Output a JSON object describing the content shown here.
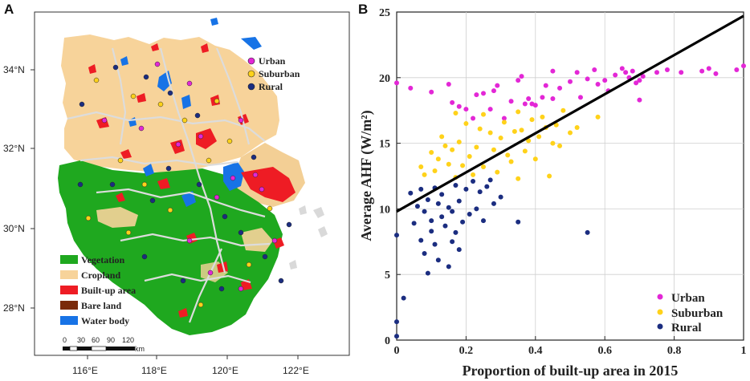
{
  "panels": {
    "a_label": "A",
    "b_label": "B"
  },
  "colors": {
    "vegetation": "#1fa81f",
    "cropland": "#f7d39a",
    "builtup": "#ee1c24",
    "bareland": "#7a2a0a",
    "water": "#1773e6",
    "urban": "#e327d6",
    "suburban": "#ffd21a",
    "rural": "#1b2d80",
    "boundary": "#dcdcdc"
  },
  "map": {
    "lat_labels": [
      "34°N",
      "32°N",
      "30°N",
      "28°N"
    ],
    "lon_labels": [
      "116°E",
      "118°E",
      "120°E",
      "122°E"
    ],
    "site_legend": [
      {
        "label": "Urban",
        "color_key": "urban"
      },
      {
        "label": "Suburban",
        "color_key": "suburban"
      },
      {
        "label": "Rural",
        "color_key": "rural"
      }
    ],
    "landcover_legend": [
      {
        "label": "Vegetation",
        "color_key": "vegetation"
      },
      {
        "label": "Cropland",
        "color_key": "cropland"
      },
      {
        "label": "Built-up area",
        "color_key": "builtup"
      },
      {
        "label": "Bare land",
        "color_key": "bareland"
      },
      {
        "label": "Water body",
        "color_key": "water"
      }
    ],
    "scale_bar": {
      "ticks": [
        "0",
        "30",
        "60",
        "90",
        "120"
      ],
      "unit": "km"
    }
  },
  "chart_data": {
    "type": "scatter",
    "title": "",
    "xlabel": "Proportion of built-up area in 2015",
    "ylabel": "Average AHF (W/m²)",
    "xlim": [
      0,
      1
    ],
    "ylim": [
      0,
      25
    ],
    "xticks": [
      0,
      0.2,
      0.4,
      0.6,
      0.8,
      1
    ],
    "xtick_labels": [
      "0",
      "0.2",
      "0.4",
      "0.6",
      "0.8",
      "1"
    ],
    "yticks": [
      0,
      5,
      10,
      15,
      20,
      25
    ],
    "ytick_labels": [
      "0",
      "5",
      "10",
      "15",
      "20",
      "25"
    ],
    "grid": true,
    "legend_position": "bottom-right",
    "regression_line": {
      "x": [
        0,
        1
      ],
      "y": [
        9.8,
        24.7
      ]
    },
    "series": [
      {
        "name": "Urban",
        "color_key": "urban",
        "points": [
          [
            0.0,
            19.6
          ],
          [
            0.04,
            19.2
          ],
          [
            0.1,
            18.9
          ],
          [
            0.15,
            19.5
          ],
          [
            0.16,
            18.1
          ],
          [
            0.18,
            17.8
          ],
          [
            0.2,
            17.6
          ],
          [
            0.22,
            16.9
          ],
          [
            0.23,
            18.7
          ],
          [
            0.25,
            18.8
          ],
          [
            0.27,
            17.6
          ],
          [
            0.28,
            19.0
          ],
          [
            0.29,
            19.4
          ],
          [
            0.31,
            16.9
          ],
          [
            0.33,
            18.2
          ],
          [
            0.35,
            19.8
          ],
          [
            0.36,
            20.1
          ],
          [
            0.37,
            18.0
          ],
          [
            0.38,
            18.4
          ],
          [
            0.39,
            18.0
          ],
          [
            0.4,
            17.9
          ],
          [
            0.42,
            18.5
          ],
          [
            0.43,
            19.4
          ],
          [
            0.45,
            18.4
          ],
          [
            0.45,
            20.5
          ],
          [
            0.47,
            19.2
          ],
          [
            0.5,
            19.7
          ],
          [
            0.52,
            20.4
          ],
          [
            0.53,
            18.5
          ],
          [
            0.55,
            19.9
          ],
          [
            0.57,
            20.6
          ],
          [
            0.58,
            19.5
          ],
          [
            0.6,
            19.8
          ],
          [
            0.61,
            19.0
          ],
          [
            0.63,
            20.2
          ],
          [
            0.65,
            20.7
          ],
          [
            0.66,
            20.4
          ],
          [
            0.67,
            20.0
          ],
          [
            0.68,
            20.5
          ],
          [
            0.69,
            19.6
          ],
          [
            0.7,
            18.3
          ],
          [
            0.71,
            20.1
          ],
          [
            0.7,
            19.8
          ],
          [
            0.75,
            20.4
          ],
          [
            0.78,
            20.6
          ],
          [
            0.82,
            20.4
          ],
          [
            0.88,
            20.5
          ],
          [
            0.9,
            20.7
          ],
          [
            0.92,
            20.3
          ],
          [
            0.98,
            20.6
          ],
          [
            1.0,
            20.9
          ]
        ]
      },
      {
        "name": "Suburban",
        "color_key": "suburban",
        "points": [
          [
            0.07,
            13.2
          ],
          [
            0.08,
            12.6
          ],
          [
            0.1,
            14.3
          ],
          [
            0.11,
            12.9
          ],
          [
            0.12,
            13.8
          ],
          [
            0.13,
            15.5
          ],
          [
            0.14,
            14.8
          ],
          [
            0.15,
            13.4
          ],
          [
            0.16,
            14.5
          ],
          [
            0.17,
            12.4
          ],
          [
            0.17,
            17.3
          ],
          [
            0.18,
            15.1
          ],
          [
            0.19,
            13.3
          ],
          [
            0.2,
            16.5
          ],
          [
            0.21,
            14.0
          ],
          [
            0.22,
            12.6
          ],
          [
            0.23,
            14.7
          ],
          [
            0.24,
            16.1
          ],
          [
            0.25,
            13.2
          ],
          [
            0.25,
            17.2
          ],
          [
            0.27,
            15.8
          ],
          [
            0.28,
            14.5
          ],
          [
            0.29,
            12.8
          ],
          [
            0.3,
            15.4
          ],
          [
            0.31,
            16.6
          ],
          [
            0.32,
            14.1
          ],
          [
            0.33,
            13.6
          ],
          [
            0.34,
            15.9
          ],
          [
            0.35,
            12.3
          ],
          [
            0.35,
            17.4
          ],
          [
            0.36,
            16.0
          ],
          [
            0.37,
            14.4
          ],
          [
            0.38,
            15.2
          ],
          [
            0.39,
            16.8
          ],
          [
            0.4,
            13.8
          ],
          [
            0.41,
            15.5
          ],
          [
            0.42,
            17.0
          ],
          [
            0.43,
            16.2
          ],
          [
            0.44,
            12.5
          ],
          [
            0.45,
            15.0
          ],
          [
            0.46,
            16.4
          ],
          [
            0.47,
            14.8
          ],
          [
            0.48,
            17.5
          ],
          [
            0.5,
            15.8
          ],
          [
            0.52,
            16.2
          ],
          [
            0.58,
            17.0
          ]
        ]
      },
      {
        "name": "Rural",
        "color_key": "rural",
        "points": [
          [
            0.0,
            0.3
          ],
          [
            0.0,
            1.4
          ],
          [
            0.0,
            8.0
          ],
          [
            0.02,
            3.2
          ],
          [
            0.04,
            11.2
          ],
          [
            0.05,
            8.9
          ],
          [
            0.06,
            10.2
          ],
          [
            0.07,
            11.5
          ],
          [
            0.07,
            7.6
          ],
          [
            0.08,
            9.8
          ],
          [
            0.08,
            6.6
          ],
          [
            0.09,
            5.1
          ],
          [
            0.09,
            10.7
          ],
          [
            0.1,
            9.1
          ],
          [
            0.1,
            8.3
          ],
          [
            0.11,
            11.6
          ],
          [
            0.11,
            7.3
          ],
          [
            0.12,
            10.4
          ],
          [
            0.12,
            6.1
          ],
          [
            0.13,
            9.4
          ],
          [
            0.13,
            11.1
          ],
          [
            0.14,
            8.7
          ],
          [
            0.15,
            10.1
          ],
          [
            0.15,
            5.6
          ],
          [
            0.16,
            9.8
          ],
          [
            0.16,
            7.5
          ],
          [
            0.17,
            11.8
          ],
          [
            0.17,
            8.2
          ],
          [
            0.18,
            10.6
          ],
          [
            0.18,
            6.9
          ],
          [
            0.19,
            9.0
          ],
          [
            0.2,
            11.5
          ],
          [
            0.21,
            9.6
          ],
          [
            0.22,
            12.1
          ],
          [
            0.23,
            10.0
          ],
          [
            0.24,
            11.3
          ],
          [
            0.25,
            9.1
          ],
          [
            0.26,
            11.7
          ],
          [
            0.27,
            12.2
          ],
          [
            0.28,
            10.4
          ],
          [
            0.3,
            10.9
          ],
          [
            0.35,
            9.0
          ],
          [
            0.55,
            8.2
          ]
        ]
      }
    ]
  }
}
